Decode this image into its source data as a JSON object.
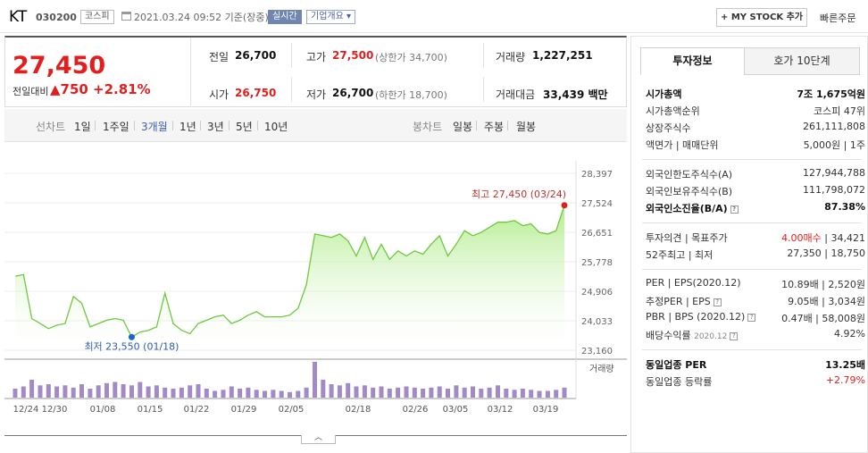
{
  "header": {
    "company": "KT",
    "code": "030200",
    "market": "코스피",
    "datetime": "2021.03.24 09:52  기준(장중)",
    "live_badge": "실시간",
    "info_badge": "기업개요 ▾",
    "mystock_btn": "+ MY STOCK 추가",
    "quick_order": "빠른주문"
  },
  "price": {
    "current": "27,450",
    "prev_label": "전일대비",
    "change_amount": "▲750",
    "change_percent": "+2.81%",
    "prev_close_label": "전일",
    "prev_close": "26,700",
    "high_label": "고가",
    "high": "27,500",
    "upper_limit": "(상한가 34,700)",
    "volume_label": "거래량",
    "volume": "1,227,251",
    "open_label": "시가",
    "open": "26,750",
    "low_label": "저가",
    "low": "26,700",
    "lower_limit": "(하한가 18,700)",
    "amount_label": "거래대금",
    "amount": "33,439 백만"
  },
  "period_tabs": {
    "line_label": "선차트",
    "line": [
      "1일",
      "1주일",
      "3개월",
      "1년",
      "3년",
      "5년",
      "10년"
    ],
    "candle_label": "봉차트",
    "candle": [
      "일봉",
      "주봉",
      "월봉"
    ]
  },
  "chart_data": {
    "type": "line",
    "y_ticks": [
      "28,397",
      "27,524",
      "26,651",
      "25,778",
      "24,906",
      "24,033",
      "23,160"
    ],
    "ylim": [
      23160,
      28397
    ],
    "x_ticks": [
      "12/24",
      "12/30",
      "01/08",
      "01/15",
      "01/22",
      "01/29",
      "02/05",
      "02/18",
      "02/26",
      "03/05",
      "03/12",
      "03/19"
    ],
    "high_annotation": "최고 27,450 (03/24)",
    "low_annotation": "최저 23,550 (01/18)",
    "volume_label": "거래량",
    "prices": [
      25350,
      25400,
      24100,
      23950,
      23800,
      23900,
      23950,
      24750,
      24550,
      23850,
      23950,
      24050,
      24100,
      24050,
      23550,
      23700,
      23750,
      23850,
      24850,
      23950,
      23750,
      23650,
      23950,
      24050,
      24150,
      24200,
      23950,
      24050,
      24200,
      24300,
      24150,
      24150,
      24150,
      24200,
      24400,
      25100,
      26600,
      26550,
      26500,
      26600,
      26400,
      25950,
      26500,
      25850,
      26300,
      25850,
      26100,
      25950,
      26100,
      26000,
      26300,
      26550,
      25950,
      26300,
      26700,
      26550,
      26650,
      26800,
      26950,
      26950,
      27000,
      26850,
      26900,
      26650,
      26600,
      26700,
      27450
    ],
    "volumes": [
      40,
      50,
      80,
      55,
      60,
      50,
      55,
      45,
      60,
      40,
      55,
      65,
      70,
      60,
      55,
      70,
      50,
      55,
      45,
      40,
      45,
      55,
      60,
      40,
      30,
      35,
      50,
      40,
      45,
      35,
      30,
      35,
      30,
      25,
      30,
      45,
      160,
      80,
      60,
      55,
      65,
      50,
      55,
      45,
      50,
      40,
      45,
      50,
      45,
      40,
      45,
      50,
      40,
      55,
      45,
      50,
      40,
      45,
      55,
      40,
      35,
      40,
      35,
      30,
      30,
      35,
      45
    ]
  },
  "right_panel": {
    "tab_active": "투자정보",
    "tab_other": "호가 10단계",
    "market_cap_label": "시가총액",
    "market_cap": "7조 1,675억원",
    "rank_label": "시가총액순위",
    "rank": "코스피 47위",
    "shares_label": "상장주식수",
    "shares": "261,111,808",
    "face_label": "액면가 | 매매단위",
    "face": "5,000원 | 1주",
    "foreign_limit_label": "외국인한도주식수(A)",
    "foreign_limit": "127,944,788",
    "foreign_hold_label": "외국인보유주식수(B)",
    "foreign_hold": "111,798,072",
    "foreign_ratio_label": "외국인소진율(B/A)",
    "foreign_ratio": "87.38%",
    "opinion_label": "투자의견 | 목표주가",
    "opinion": "4.00매수",
    "target": "34,421",
    "week52_label": "52주최고 | 최저",
    "week52": "27,350 | 18,750",
    "per_label": "PER | EPS(2020.12)",
    "per": "10.89배 | 2,520원",
    "est_per_label": "추정PER | EPS",
    "est_per": "9.05배 | 3,034원",
    "pbr_label": "PBR | BPS (2020.12)",
    "pbr": "0.47배 | 58,008원",
    "div_label": "배당수익률",
    "div_date": "2020.12",
    "div": "4.92%",
    "sector_per_label": "동일업종 PER",
    "sector_per": "13.25배",
    "sector_chg_label": "동일업종 등락률",
    "sector_chg": "+2.79%"
  }
}
